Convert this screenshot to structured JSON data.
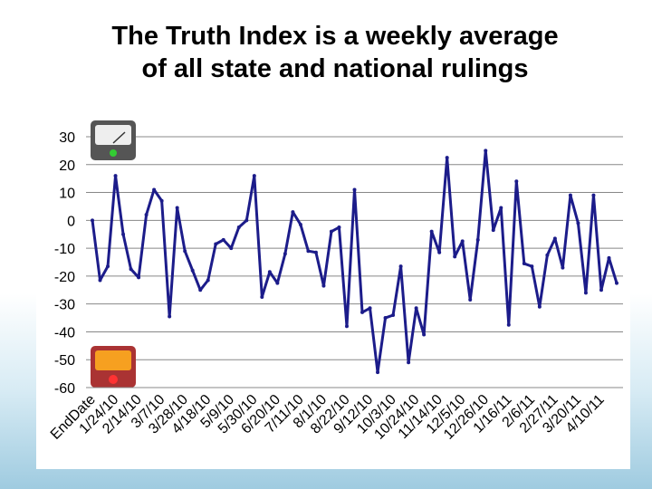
{
  "chart_data": {
    "type": "line",
    "title": "The Truth Index is a weekly average\nof all state and national rulings",
    "categories": [
      "EndDate",
      null,
      null,
      "1/24/10",
      null,
      null,
      "2/14/10",
      null,
      null,
      "3/7/10",
      null,
      null,
      "3/28/10",
      null,
      null,
      "4/18/10",
      null,
      null,
      "5/9/10",
      null,
      null,
      "5/30/10",
      null,
      null,
      "6/20/10",
      null,
      null,
      "7/11/10",
      null,
      null,
      "8/1/10",
      null,
      null,
      "8/22/10",
      null,
      null,
      "9/12/10",
      null,
      null,
      "10/3/10",
      null,
      null,
      "10/24/10",
      null,
      null,
      "11/14/10",
      null,
      null,
      "12/5/10",
      null,
      null,
      "12/26/10",
      null,
      null,
      "1/16/11",
      null,
      null,
      "2/6/11",
      null,
      null,
      "2/27/11",
      null,
      null,
      "3/20/11",
      null,
      null,
      "4/10/11",
      null,
      null
    ],
    "series": [
      {
        "color": "#1c1c8a",
        "values": [
          0,
          -21.5,
          -16.5,
          16,
          -5,
          -17.5,
          -20.5,
          2,
          11,
          7,
          -34.5,
          4.5,
          -11,
          -18,
          -25,
          -21.5,
          -8.5,
          -7,
          -10,
          -2.5,
          0,
          16,
          -27.5,
          -18.5,
          -22.5,
          -12,
          3,
          -1.5,
          -11,
          -11.5,
          -23.5,
          -4,
          -2.5,
          -38,
          11,
          -33,
          -31.5,
          -54.5,
          -35,
          -34,
          -16.5,
          -51,
          -31.5,
          -41,
          -4,
          -11.5,
          22.5,
          -13,
          -7.5,
          -28.5,
          -7,
          25,
          -3.5,
          4.5,
          -37.5,
          14,
          -15.5,
          -16.5,
          -31,
          -12.5,
          -6.5,
          -17,
          9,
          -1,
          -26,
          9,
          -25,
          -13.5,
          -22.5
        ]
      }
    ],
    "ylim": [
      -60,
      30
    ],
    "yticks": [
      -60,
      -50,
      -40,
      -30,
      -20,
      -10,
      0,
      10,
      20,
      30
    ],
    "grid": true
  }
}
